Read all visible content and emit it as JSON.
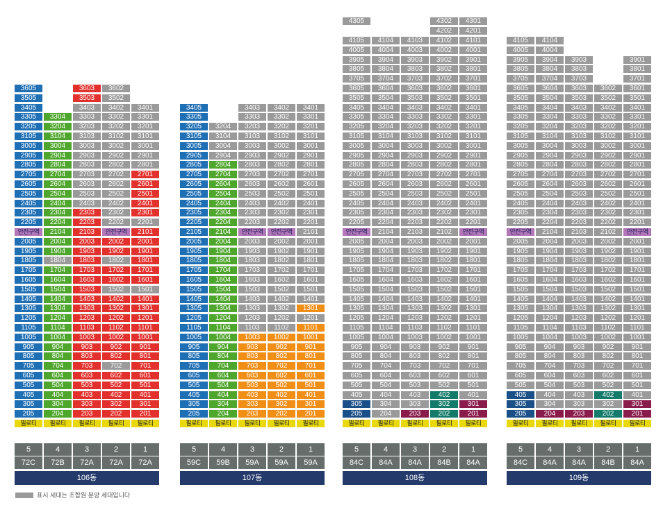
{
  "colors": {
    "gray": "#9a9a9a",
    "blue": "#1f6fb5",
    "red": "#e2312d",
    "green": "#4ea62c",
    "orange": "#f18e16",
    "zone": "#b277b8",
    "navy": "#1a4f87",
    "maroon": "#8a1c4b",
    "teal": "#147a6a",
    "piloti": "#e8d80c",
    "line_box": "#666d6b",
    "building_bar": "#233a6b"
  },
  "legend": {
    "text": "표시 세대는 조합원 분양 세대입니다",
    "color": "gray"
  },
  "labels": {
    "zone": "안전구역",
    "piloti": "필로티"
  },
  "buildings": [
    {
      "name": "106동",
      "columns": [
        {
          "line": "5",
          "type": "72C",
          "top_floor": 36,
          "default": "blue",
          "overrides": {
            "21": "zone"
          }
        },
        {
          "line": "4",
          "type": "72B",
          "top_floor": 33,
          "default": "teal-green",
          "overrides": {
            "18": "gray"
          }
        },
        {
          "line": "3",
          "type": "72A",
          "top_floor": 36,
          "default": "red",
          "overrides": {
            "34": "gray",
            "33": "gray",
            "32": "gray",
            "31": "gray",
            "30": "gray",
            "29": "gray",
            "28": "gray",
            "27": "gray",
            "26": "gray",
            "25": "gray",
            "24": "gray",
            "22": "gray"
          }
        },
        {
          "line": "2",
          "type": "72A",
          "top_floor": 36,
          "default": "gray",
          "overrides": {
            "21": "zone",
            "18": "red",
            "17": "red",
            "16": "red",
            "14": "red",
            "13": "red",
            "12": "red",
            "11": "red",
            "10": "red",
            "9": "red",
            "8": "red",
            "6": "red",
            "5": "red",
            "4": "red",
            "3": "red",
            "2": "red"
          }
        },
        {
          "line": "1",
          "type": "72A",
          "top_floor": 34,
          "default": "red",
          "overrides": {
            "33": "gray",
            "32": "gray",
            "31": "gray",
            "30": "gray",
            "29": "gray",
            "28": "gray",
            "22": "gray",
            "20": "red",
            "15": "gray"
          }
        }
      ]
    },
    {
      "name": "107동",
      "columns": [
        {
          "line": "5",
          "type": "59C",
          "top_floor": 34,
          "default": "blue",
          "overrides": {}
        },
        {
          "line": "4",
          "type": "59B",
          "top_floor": 32,
          "default": "gray",
          "overrides": {}
        },
        {
          "line": "3",
          "type": "59A",
          "top_floor": 34,
          "default": "gray",
          "overrides": {
            "21": "zone"
          }
        },
        {
          "line": "2",
          "type": "59A",
          "top_floor": 34,
          "default": "gray",
          "overrides": {
            "21": "zone"
          }
        },
        {
          "line": "1",
          "type": "59A",
          "top_floor": 34,
          "default": "gray",
          "overrides": {}
        }
      ]
    },
    {
      "name": "108동",
      "columns": [
        {
          "line": "5",
          "type": "84C",
          "top_floor": 43,
          "default": "gray",
          "overrides": {
            "21": "zone",
            "3": "navy",
            "2": "navy"
          }
        },
        {
          "line": "4",
          "type": "84A",
          "top_floor": 41,
          "default": "gray",
          "overrides": {}
        },
        {
          "line": "3",
          "type": "84A",
          "top_floor": 41,
          "default": "gray",
          "overrides": {
            "2": "maroon"
          }
        },
        {
          "line": "2",
          "type": "84B",
          "top_floor": 43,
          "default": "gray",
          "overrides": {
            "4": "teal",
            "3": "teal",
            "2": "teal"
          }
        },
        {
          "line": "1",
          "type": "84A",
          "top_floor": 43,
          "default": "gray",
          "overrides": {
            "3": "maroon",
            "2": "maroon"
          }
        }
      ]
    },
    {
      "name": "109동",
      "columns": [
        {
          "line": "5",
          "type": "84C",
          "top_floor": 41,
          "default": "gray",
          "overrides": {
            "21": "zone",
            "4": "navy",
            "2": "navy"
          }
        },
        {
          "line": "4",
          "type": "84A",
          "top_floor": 41,
          "default": "gray",
          "overrides": {
            "2": "maroon"
          }
        },
        {
          "line": "3",
          "type": "84A",
          "top_floor": 39,
          "default": "gray",
          "overrides": {
            "2": "maroon"
          }
        },
        {
          "line": "2",
          "type": "84B",
          "top_floor": 36,
          "default": "gray",
          "overrides": {
            "4": "teal",
            "2": "teal"
          }
        },
        {
          "line": "1",
          "type": "84A",
          "top_floor": 39,
          "default": "gray",
          "overrides": {
            "21": "zone",
            "3": "maroon",
            "2": "maroon"
          }
        }
      ]
    }
  ]
}
